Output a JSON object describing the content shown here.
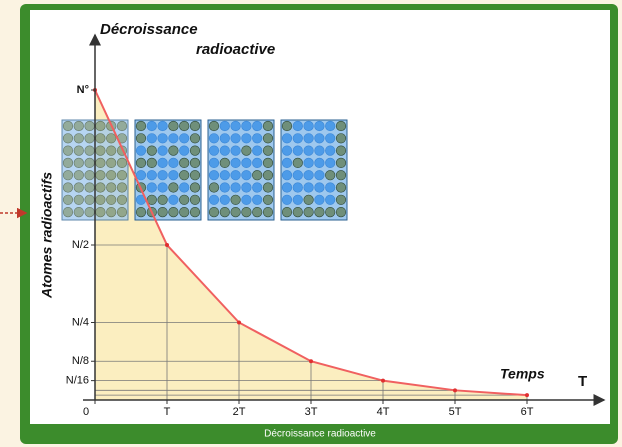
{
  "chart_data": {
    "type": "line",
    "title_lines": [
      "Décroissance",
      "radioactive"
    ],
    "y_label": "Atomes radioactifs",
    "x_label": "Temps",
    "x_axis_symbol": "T",
    "caption": "Décroissance radioactive",
    "x": [
      0,
      1,
      2,
      3,
      4,
      5,
      6
    ],
    "values": [
      1,
      0.5,
      0.25,
      0.125,
      0.0625,
      0.03125,
      0.015625
    ],
    "color": "#f06060",
    "fill": "#fbeec0",
    "xlim": [
      0,
      7
    ],
    "ylim": [
      0,
      1
    ],
    "xticks": [
      0,
      {
        "value": 1,
        "label": "T"
      },
      {
        "value": 2,
        "label": "2T"
      },
      {
        "value": 3,
        "label": "3T"
      },
      {
        "value": 4,
        "label": "4T"
      },
      {
        "value": 5,
        "label": "5T"
      },
      {
        "value": 6,
        "label": "6T"
      }
    ],
    "yticks": [
      {
        "value": 1,
        "label": "N°"
      },
      {
        "value": 0.5,
        "label": "N/2"
      },
      {
        "value": 0.25,
        "label": "N/4"
      },
      {
        "value": 0.125,
        "label": "N/8"
      },
      {
        "value": 0.0625,
        "label": "N/16"
      }
    ]
  }
}
